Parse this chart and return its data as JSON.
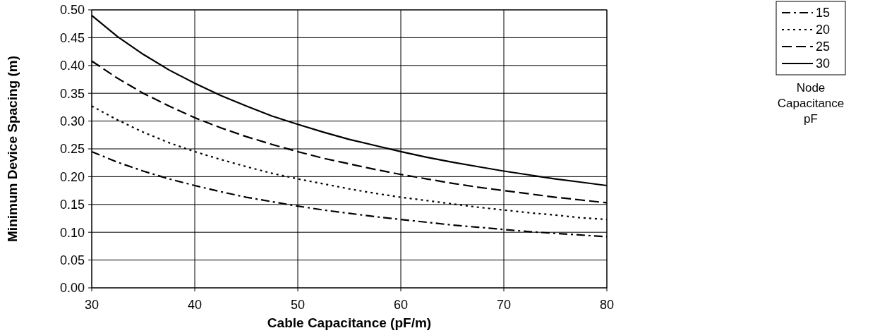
{
  "chart_data": {
    "type": "line",
    "xlabel": "Cable Capacitance (pF/m)",
    "ylabel": "Minimum Device Spacing (m)",
    "legend_title": "Node Capacitance pF",
    "x": [
      30,
      32.5,
      35,
      37.5,
      40,
      42.5,
      45,
      47.5,
      50,
      52.5,
      55,
      57.5,
      60,
      62.5,
      65,
      67.5,
      70,
      72.5,
      75,
      77.5,
      80
    ],
    "series": [
      {
        "name": "15",
        "color": "#000000",
        "line_style": "dashdot",
        "values": [
          0.245,
          0.226,
          0.21,
          0.196,
          0.184,
          0.173,
          0.163,
          0.155,
          0.147,
          0.14,
          0.134,
          0.128,
          0.123,
          0.118,
          0.113,
          0.109,
          0.105,
          0.101,
          0.098,
          0.095,
          0.092
        ]
      },
      {
        "name": "20",
        "color": "#000000",
        "line_style": "dotted",
        "values": [
          0.327,
          0.302,
          0.28,
          0.261,
          0.245,
          0.231,
          0.218,
          0.206,
          0.196,
          0.187,
          0.178,
          0.17,
          0.163,
          0.157,
          0.151,
          0.145,
          0.14,
          0.135,
          0.131,
          0.126,
          0.123
        ]
      },
      {
        "name": "25",
        "color": "#000000",
        "line_style": "dashed",
        "values": [
          0.408,
          0.377,
          0.35,
          0.327,
          0.306,
          0.288,
          0.272,
          0.258,
          0.245,
          0.233,
          0.223,
          0.213,
          0.204,
          0.196,
          0.188,
          0.181,
          0.175,
          0.169,
          0.163,
          0.158,
          0.153
        ]
      },
      {
        "name": "30",
        "color": "#000000",
        "line_style": "solid",
        "values": [
          0.49,
          0.452,
          0.42,
          0.392,
          0.368,
          0.346,
          0.327,
          0.309,
          0.294,
          0.28,
          0.267,
          0.256,
          0.245,
          0.235,
          0.226,
          0.218,
          0.21,
          0.203,
          0.196,
          0.19,
          0.184
        ]
      }
    ],
    "xlim": [
      30,
      80
    ],
    "xticks": [
      30,
      40,
      50,
      60,
      70,
      80
    ],
    "ylim": [
      0,
      0.5
    ],
    "yticks": [
      {
        "value": 0,
        "label": "0.00"
      },
      {
        "value": 0.05,
        "label": "0.05"
      },
      {
        "value": 0.1,
        "label": "0.10"
      },
      {
        "value": 0.15,
        "label": "0.15"
      },
      {
        "value": 0.2,
        "label": "0.20"
      },
      {
        "value": 0.25,
        "label": "0.25"
      },
      {
        "value": 0.3,
        "label": "0.30"
      },
      {
        "value": 0.35,
        "label": "0.35"
      },
      {
        "value": 0.4,
        "label": "0.40"
      },
      {
        "value": 0.45,
        "label": "0.45"
      },
      {
        "value": 0.5,
        "label": "0.50"
      }
    ],
    "grid": true,
    "legend": "right",
    "marker": "none"
  }
}
